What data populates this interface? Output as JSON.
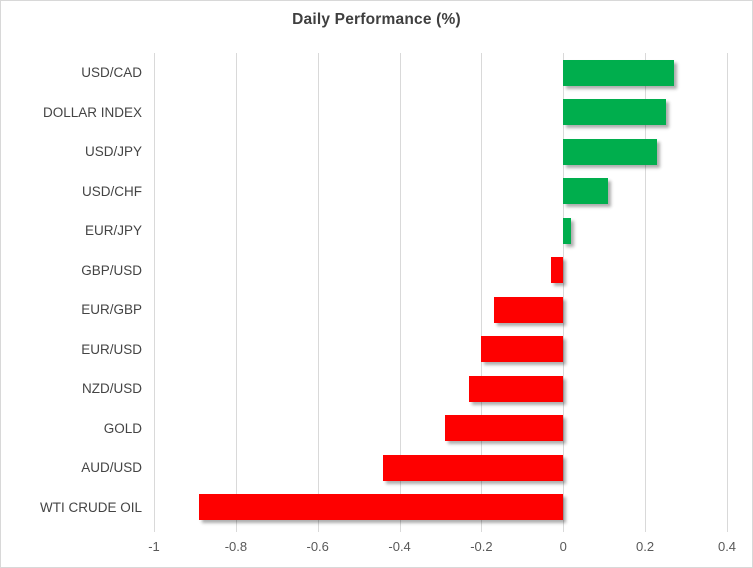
{
  "chart_data": {
    "type": "bar",
    "orientation": "horizontal",
    "title": "Daily Performance (%)",
    "categories": [
      "USD/CAD",
      "DOLLAR INDEX",
      "USD/JPY",
      "USD/CHF",
      "EUR/JPY",
      "GBP/USD",
      "EUR/GBP",
      "EUR/USD",
      "NZD/USD",
      "GOLD",
      "AUD/USD",
      "WTI CRUDE OIL"
    ],
    "values": [
      0.27,
      0.25,
      0.23,
      0.11,
      0.02,
      -0.03,
      -0.17,
      -0.2,
      -0.23,
      -0.29,
      -0.44,
      -0.89
    ],
    "xlim": [
      -1.0,
      0.4
    ],
    "x_ticks": [
      -1,
      -0.8,
      -0.6,
      -0.4,
      -0.2,
      0,
      0.2,
      0.4
    ],
    "x_tick_labels": [
      "-1",
      "-0.8",
      "-0.6",
      "-0.4",
      "-0.2",
      "0",
      "0.2",
      "0.4"
    ],
    "grid": "vertical-only",
    "legend": "none",
    "colors": {
      "positive": "#00ae4d",
      "negative": "#fe0000",
      "gridline": "#d9d9d9",
      "title_text": "#3f3f3f",
      "category_text": "#444444",
      "tick_text": "#595959",
      "border": "#d8d8d8",
      "background": "#ffffff"
    }
  }
}
